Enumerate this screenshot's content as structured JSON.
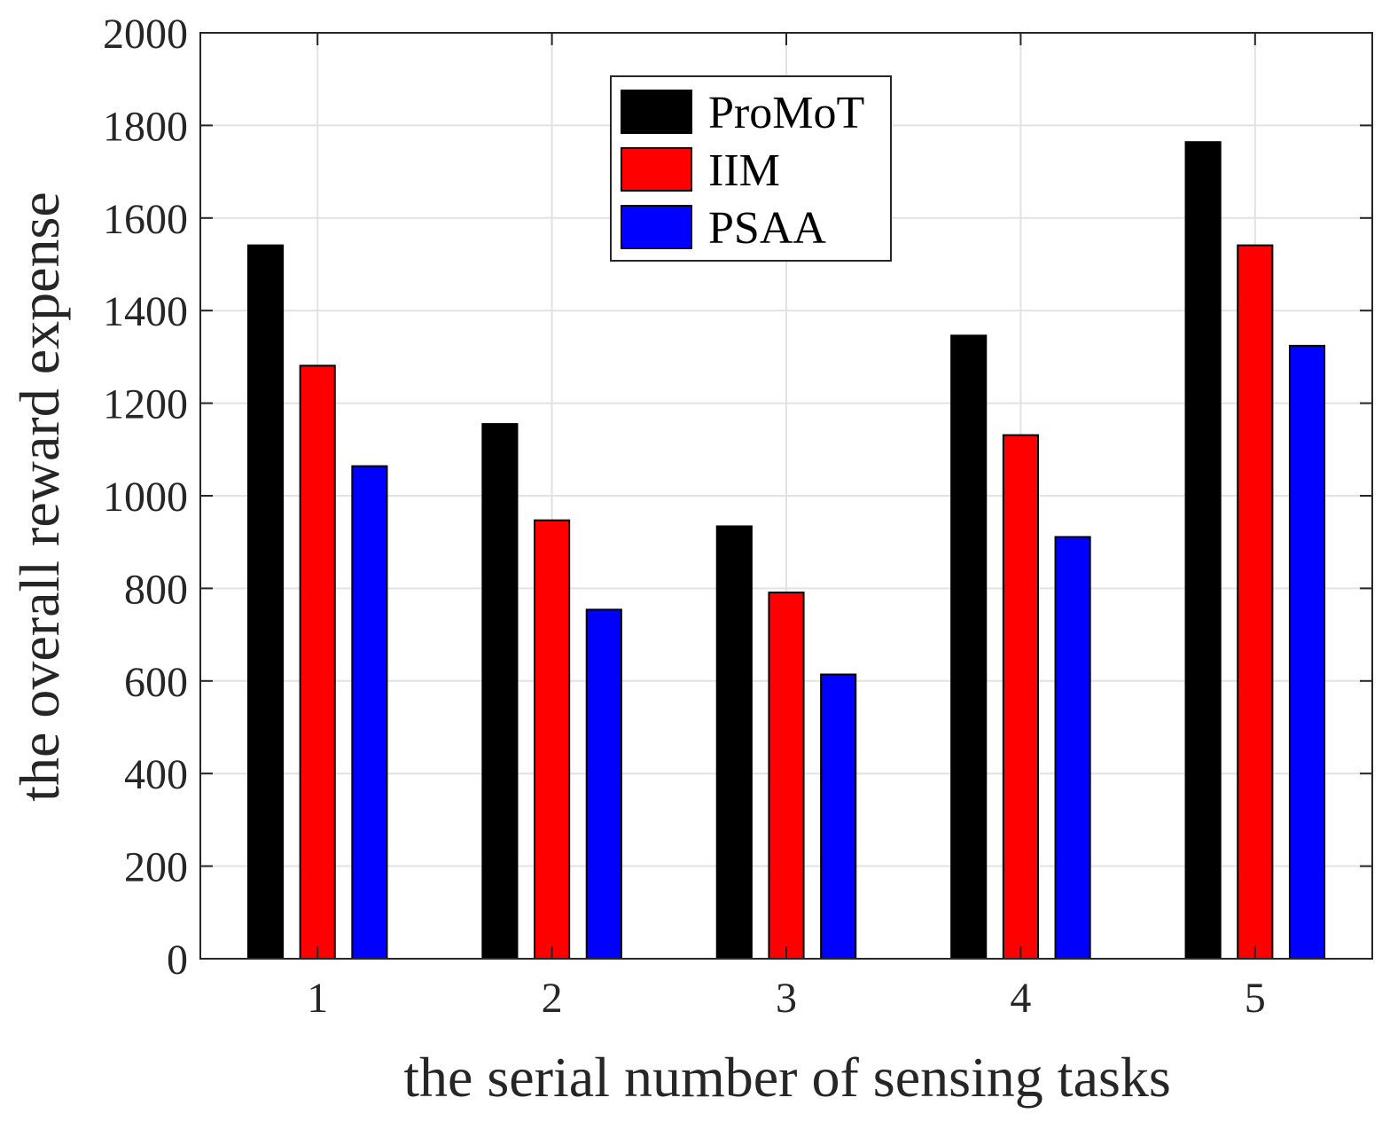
{
  "chart_data": {
    "type": "bar",
    "xlabel": "the serial number of sensing tasks",
    "ylabel": "the overall reward expense",
    "categories": [
      "1",
      "2",
      "3",
      "4",
      "5"
    ],
    "ylim": [
      0,
      2000
    ],
    "yticks": [
      0,
      200,
      400,
      600,
      800,
      1000,
      1200,
      1400,
      1600,
      1800,
      2000
    ],
    "xlim": [
      0.5,
      5.5
    ],
    "grid": true,
    "legend_position": "top-center",
    "series": [
      {
        "name": "ProMoT",
        "color": "#000000",
        "values": [
          1541,
          1155,
          934,
          1346,
          1764
        ]
      },
      {
        "name": "IIM",
        "color": "#ff0000",
        "values": [
          1281,
          947,
          791,
          1131,
          1541
        ]
      },
      {
        "name": "PSAA",
        "color": "#0000ff",
        "values": [
          1064,
          754,
          614,
          911,
          1324
        ]
      }
    ]
  }
}
